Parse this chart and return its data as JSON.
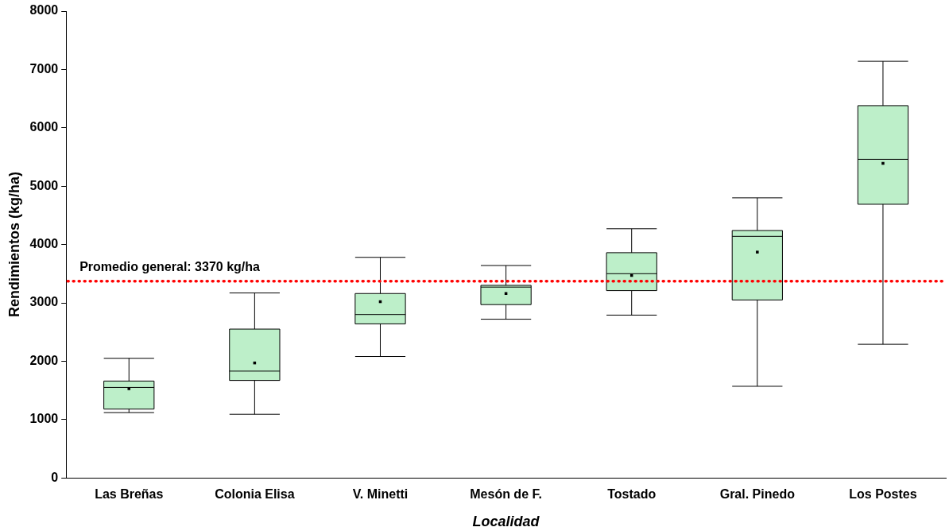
{
  "chart_data": {
    "type": "box",
    "xlabel": "Localidad",
    "ylabel": "Rendimientos (kg/ha)",
    "categories": [
      "Las Breñas",
      "Colonia Elisa",
      "V. Minetti",
      "Mesón de F.",
      "Tostado",
      "Gral. Pinedo",
      "Los Postes"
    ],
    "color": "#bdefc9",
    "marker": "square",
    "grid": false,
    "boxes": [
      {
        "low": 1120,
        "q1": 1180,
        "median": 1550,
        "q3": 1660,
        "high": 2050,
        "mean": 1530
      },
      {
        "low": 1090,
        "q1": 1670,
        "median": 1830,
        "q3": 2550,
        "high": 3170,
        "mean": 1970
      },
      {
        "low": 2080,
        "q1": 2640,
        "median": 2800,
        "q3": 3160,
        "high": 3780,
        "mean": 3020
      },
      {
        "low": 2720,
        "q1": 2970,
        "median": 3270,
        "q3": 3300,
        "high": 3640,
        "mean": 3160
      },
      {
        "low": 2790,
        "q1": 3210,
        "median": 3500,
        "q3": 3860,
        "high": 4270,
        "mean": 3470
      },
      {
        "low": 1570,
        "q1": 3050,
        "median": 4140,
        "q3": 4240,
        "high": 4800,
        "mean": 3870
      },
      {
        "low": 2290,
        "q1": 4690,
        "median": 5460,
        "q3": 6380,
        "high": 7140,
        "mean": 5390
      }
    ],
    "ylim": [
      0,
      8000
    ],
    "yticks": [
      0,
      1000,
      2000,
      3000,
      4000,
      5000,
      6000,
      7000,
      8000
    ],
    "ref_lines": [
      {
        "axis": "y",
        "value": 3370,
        "label": "Promedio general: 3370 kg/ha",
        "color": "#ff0000",
        "line_style": "dotted"
      }
    ]
  }
}
